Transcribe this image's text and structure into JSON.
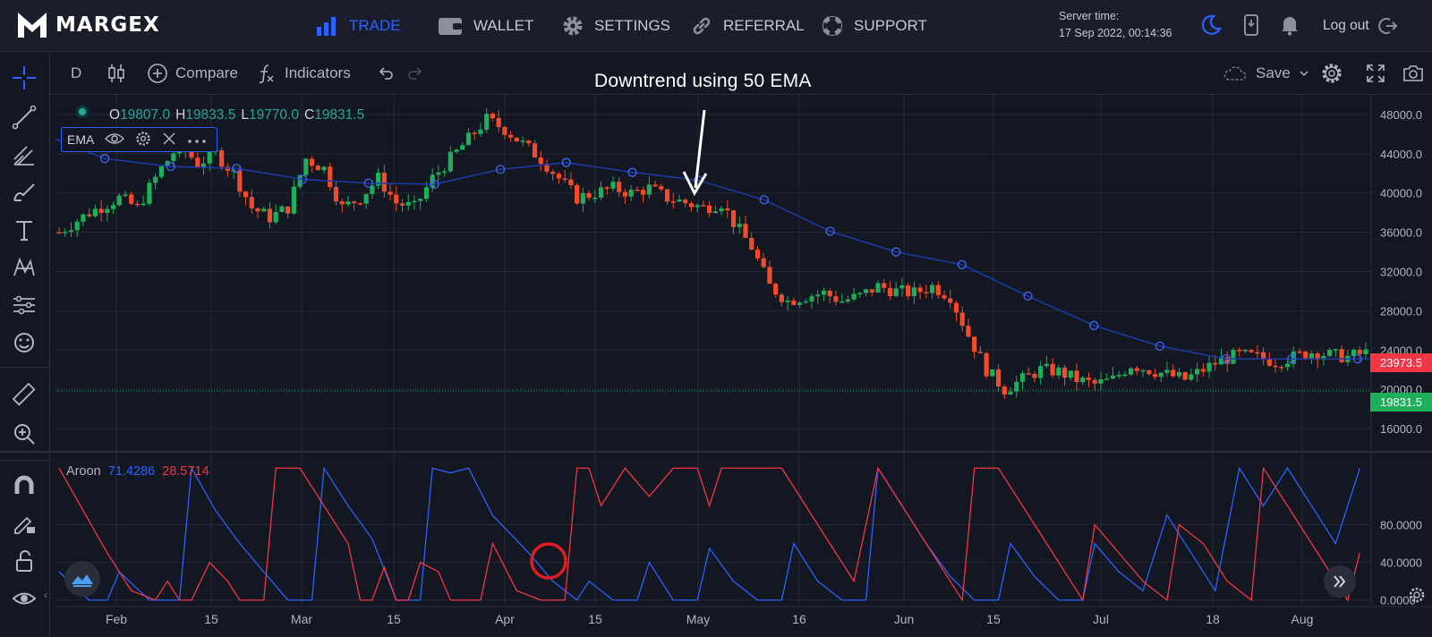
{
  "brand": {
    "name": "MARGEX"
  },
  "nav": [
    {
      "label": "TRADE",
      "icon": "bar-chart-icon",
      "active": true
    },
    {
      "label": "WALLET",
      "icon": "wallet-icon"
    },
    {
      "label": "SETTINGS",
      "icon": "gear-icon"
    },
    {
      "label": "REFERRAL",
      "icon": "link-icon"
    },
    {
      "label": "SUPPORT",
      "icon": "lifebuoy-icon"
    }
  ],
  "server_time": {
    "label": "Server time:",
    "value": "17 Sep 2022, 00:14:36"
  },
  "header_icons": [
    "moon-icon",
    "phone-icon",
    "bell-icon"
  ],
  "logout": {
    "label": "Log out"
  },
  "toolbar": {
    "interval": "D",
    "compare": "Compare",
    "indicators": "Indicators",
    "save": "Save"
  },
  "left_tools": [
    "crosshair-icon",
    "trend-line-icon",
    "pitchfork-icon",
    "brush-icon",
    "text-icon",
    "pattern-icon",
    "prediction-icon",
    "emoji-icon",
    "ruler-icon",
    "zoom-in-icon",
    "magnet-icon",
    "lock-pencil-icon",
    "unlock-icon",
    "eye-icon"
  ],
  "ohlc": {
    "o_label": "O",
    "o": "19807.0",
    "h_label": "H",
    "h": "19833.5",
    "l_label": "L",
    "l": "19770.0",
    "c_label": "C",
    "c": "19831.5"
  },
  "ema_label": "EMA",
  "annotation": "Downtrend using 50 EMA",
  "aroon": {
    "name": "Aroon",
    "up": "71.4286",
    "down": "28.5714"
  },
  "price_labels": {
    "high": "23973.5",
    "last": "19831.5"
  },
  "colors": {
    "up": "#26a69a",
    "candle_up": "#1fae5a",
    "candle_down": "#f24b2b",
    "ema": "#1e3aa8",
    "aroon_up": "#2962ff",
    "aroon_down": "#f23645",
    "accent": "#2962ff"
  },
  "chart_data": {
    "type": "candlestick",
    "title": "",
    "price_axis": {
      "ticks": [
        "48000.0",
        "44000.0",
        "40000.0",
        "36000.0",
        "32000.0",
        "28000.0",
        "24000.0",
        "20000.0",
        "16000.0"
      ],
      "ylim": [
        15000,
        50000
      ]
    },
    "aroon_axis": {
      "ticks": [
        "80.0000",
        "40.0000",
        "0.0000"
      ],
      "ylim": [
        -5,
        145
      ]
    },
    "x_ticks": [
      "Feb",
      "15",
      "Mar",
      "15",
      "Apr",
      "15",
      "May",
      "16",
      "Jun",
      "15",
      "Jul",
      "18",
      "Aug"
    ],
    "ema50_markers": [
      43500,
      42700,
      42500,
      41400,
      41000,
      40900,
      42400,
      43100,
      42100,
      41300,
      39300,
      36100,
      34000,
      32700,
      29500,
      26500,
      24400,
      23100,
      23100,
      23100
    ],
    "price_path": [
      [
        0,
        36000
      ],
      [
        5,
        38000
      ],
      [
        10,
        39500
      ],
      [
        13,
        38500
      ],
      [
        17,
        42500
      ],
      [
        20,
        45000
      ],
      [
        23,
        43000
      ],
      [
        26,
        44000
      ],
      [
        29,
        42000
      ],
      [
        32,
        38500
      ],
      [
        35,
        37500
      ],
      [
        38,
        38500
      ],
      [
        41,
        43500
      ],
      [
        44,
        42500
      ],
      [
        47,
        38500
      ],
      [
        50,
        39500
      ],
      [
        53,
        41500
      ],
      [
        56,
        39000
      ],
      [
        59,
        38500
      ],
      [
        62,
        41500
      ],
      [
        65,
        43500
      ],
      [
        68,
        45500
      ],
      [
        71,
        47500
      ],
      [
        74,
        46500
      ],
      [
        77,
        45000
      ],
      [
        80,
        43500
      ],
      [
        83,
        41500
      ],
      [
        86,
        39500
      ],
      [
        89,
        40000
      ],
      [
        92,
        40500
      ],
      [
        95,
        40000
      ],
      [
        98,
        40500
      ],
      [
        101,
        39500
      ],
      [
        104,
        39000
      ],
      [
        107,
        38500
      ],
      [
        110,
        39000
      ],
      [
        112,
        37000
      ],
      [
        115,
        34500
      ],
      [
        118,
        30500
      ],
      [
        121,
        29000
      ],
      [
        124,
        29500
      ],
      [
        127,
        29800
      ],
      [
        130,
        29000
      ],
      [
        133,
        29500
      ],
      [
        136,
        30500
      ],
      [
        139,
        30000
      ],
      [
        142,
        29800
      ],
      [
        145,
        30500
      ],
      [
        148,
        29500
      ],
      [
        151,
        25500
      ],
      [
        154,
        22000
      ],
      [
        157,
        20000
      ],
      [
        160,
        21000
      ],
      [
        163,
        22000
      ],
      [
        166,
        21800
      ],
      [
        169,
        21000
      ],
      [
        172,
        20500
      ],
      [
        175,
        21000
      ],
      [
        178,
        22500
      ],
      [
        181,
        22000
      ],
      [
        184,
        21500
      ],
      [
        187,
        21000
      ],
      [
        190,
        22000
      ],
      [
        193,
        23000
      ],
      [
        196,
        23500
      ],
      [
        199,
        23300
      ],
      [
        202,
        22800
      ],
      [
        205,
        23300
      ],
      [
        208,
        23800
      ],
      [
        211,
        23500
      ],
      [
        214,
        23300
      ],
      [
        217,
        23700
      ]
    ],
    "aroon_up": [
      [
        0,
        30
      ],
      [
        5,
        0
      ],
      [
        8,
        0
      ],
      [
        10,
        30
      ],
      [
        15,
        0
      ],
      [
        20,
        0
      ],
      [
        22,
        140
      ],
      [
        26,
        95
      ],
      [
        30,
        60
      ],
      [
        34,
        30
      ],
      [
        38,
        0
      ],
      [
        42,
        0
      ],
      [
        44,
        140
      ],
      [
        48,
        100
      ],
      [
        52,
        65
      ],
      [
        56,
        0
      ],
      [
        60,
        0
      ],
      [
        62,
        140
      ],
      [
        65,
        135
      ],
      [
        68,
        140
      ],
      [
        72,
        90
      ],
      [
        78,
        50
      ],
      [
        82,
        20
      ],
      [
        86,
        0
      ],
      [
        88,
        20
      ],
      [
        92,
        0
      ],
      [
        96,
        0
      ],
      [
        98,
        40
      ],
      [
        102,
        0
      ],
      [
        106,
        0
      ],
      [
        108,
        55
      ],
      [
        112,
        20
      ],
      [
        116,
        0
      ],
      [
        120,
        0
      ],
      [
        122,
        60
      ],
      [
        126,
        20
      ],
      [
        130,
        0
      ],
      [
        134,
        0
      ],
      [
        136,
        140
      ],
      [
        140,
        100
      ],
      [
        144,
        60
      ],
      [
        148,
        25
      ],
      [
        152,
        0
      ],
      [
        156,
        0
      ],
      [
        158,
        60
      ],
      [
        162,
        25
      ],
      [
        166,
        0
      ],
      [
        170,
        0
      ],
      [
        172,
        60
      ],
      [
        176,
        30
      ],
      [
        180,
        10
      ],
      [
        184,
        90
      ],
      [
        188,
        50
      ],
      [
        192,
        10
      ],
      [
        196,
        140
      ],
      [
        200,
        100
      ],
      [
        204,
        140
      ],
      [
        208,
        100
      ],
      [
        212,
        60
      ],
      [
        216,
        140
      ]
    ],
    "aroon_down": [
      [
        0,
        140
      ],
      [
        4,
        95
      ],
      [
        8,
        50
      ],
      [
        12,
        10
      ],
      [
        16,
        0
      ],
      [
        18,
        20
      ],
      [
        20,
        0
      ],
      [
        22,
        0
      ],
      [
        25,
        40
      ],
      [
        28,
        20
      ],
      [
        30,
        0
      ],
      [
        34,
        0
      ],
      [
        36,
        140
      ],
      [
        40,
        140
      ],
      [
        44,
        100
      ],
      [
        48,
        60
      ],
      [
        50,
        0
      ],
      [
        52,
        0
      ],
      [
        54,
        35
      ],
      [
        56,
        0
      ],
      [
        58,
        0
      ],
      [
        60,
        40
      ],
      [
        63,
        30
      ],
      [
        65,
        0
      ],
      [
        70,
        0
      ],
      [
        72,
        60
      ],
      [
        76,
        10
      ],
      [
        80,
        0
      ],
      [
        84,
        0
      ],
      [
        86,
        140
      ],
      [
        88,
        140
      ],
      [
        90,
        100
      ],
      [
        94,
        140
      ],
      [
        98,
        110
      ],
      [
        102,
        140
      ],
      [
        106,
        140
      ],
      [
        108,
        100
      ],
      [
        110,
        140
      ],
      [
        114,
        140
      ],
      [
        116,
        140
      ],
      [
        120,
        140
      ],
      [
        126,
        80
      ],
      [
        132,
        20
      ],
      [
        136,
        140
      ],
      [
        140,
        100
      ],
      [
        144,
        60
      ],
      [
        148,
        20
      ],
      [
        150,
        0
      ],
      [
        152,
        140
      ],
      [
        156,
        140
      ],
      [
        160,
        100
      ],
      [
        164,
        60
      ],
      [
        168,
        20
      ],
      [
        170,
        0
      ],
      [
        172,
        80
      ],
      [
        176,
        50
      ],
      [
        180,
        20
      ],
      [
        184,
        0
      ],
      [
        186,
        80
      ],
      [
        190,
        60
      ],
      [
        194,
        20
      ],
      [
        198,
        0
      ],
      [
        200,
        140
      ],
      [
        204,
        100
      ],
      [
        208,
        60
      ],
      [
        212,
        20
      ],
      [
        214,
        0
      ],
      [
        216,
        50
      ]
    ]
  }
}
